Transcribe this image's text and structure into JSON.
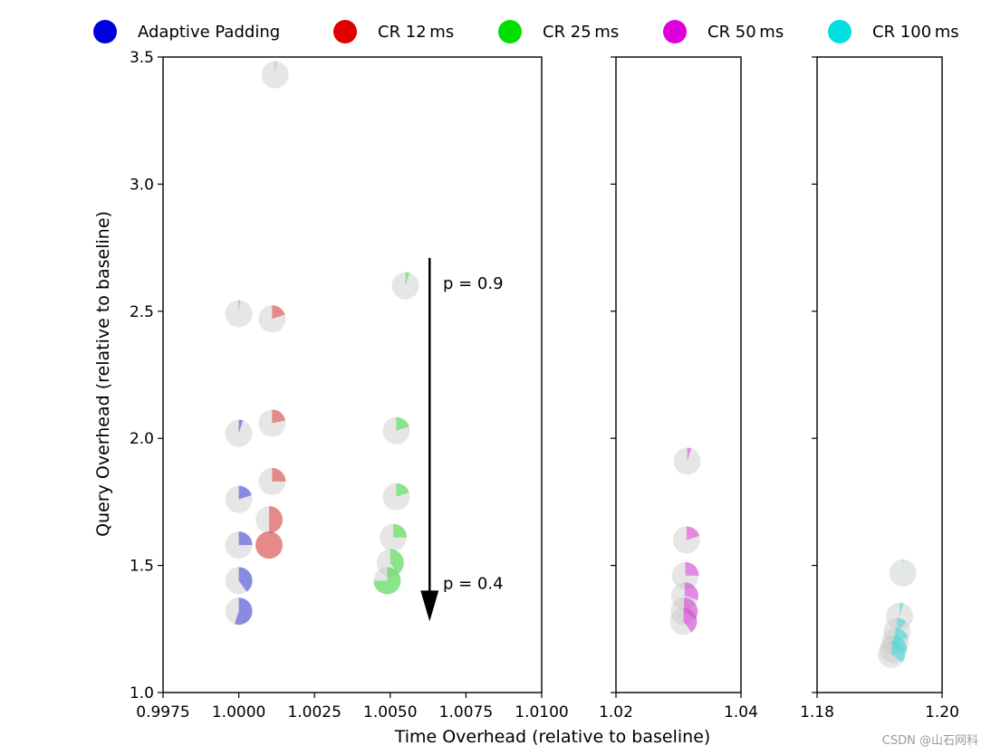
{
  "watermark": "CSDN @山石网科",
  "chart_data": {
    "type": "scatter",
    "xlabel": "Time Overhead (relative to baseline)",
    "ylabel": "Query Overhead (relative to baseline)",
    "ylim": [
      1.0,
      3.5
    ],
    "yticks": [
      "1.0",
      "1.5",
      "2.0",
      "2.5",
      "3.0",
      "3.5"
    ],
    "legend_position": "top",
    "legend": [
      {
        "label": "Adaptive Padding",
        "color": "#0000dd"
      },
      {
        "label": "CR 12 ms",
        "color": "#e00000"
      },
      {
        "label": "CR 25 ms",
        "color": "#00e000"
      },
      {
        "label": "CR 50 ms",
        "color": "#dd00dd"
      },
      {
        "label": "CR 100 ms",
        "color": "#00e0e0"
      }
    ],
    "annotations": [
      {
        "text": "p = 0.9",
        "x": 1.0065,
        "y": 2.61
      },
      {
        "text": "p = 0.4",
        "x": 1.0065,
        "y": 1.43
      }
    ],
    "arrow": {
      "panel": 0,
      "x": 1.0063,
      "y_start": 2.71,
      "y_end": 1.28
    },
    "panels": [
      {
        "xlim": [
          0.9975,
          1.01
        ],
        "xticks": [
          "0.9975",
          "1.0000",
          "1.0025",
          "1.0050",
          "1.0075",
          "1.0100"
        ],
        "series": [
          {
            "name": "Adaptive Padding",
            "color": "#0000dd",
            "points": [
              {
                "x": 1.0,
                "y": 2.49,
                "frac": 0.01
              },
              {
                "x": 1.0,
                "y": 2.02,
                "frac": 0.05
              },
              {
                "x": 1.0,
                "y": 1.76,
                "frac": 0.2
              },
              {
                "x": 1.0,
                "y": 1.58,
                "frac": 0.25
              },
              {
                "x": 1.0,
                "y": 1.44,
                "frac": 0.4
              },
              {
                "x": 1.0,
                "y": 1.32,
                "frac": 0.55
              }
            ]
          },
          {
            "name": "CR 12 ms",
            "color": "#e00000",
            "points": [
              {
                "x": 1.0012,
                "y": 3.43,
                "frac": 0.01
              },
              {
                "x": 1.0011,
                "y": 2.47,
                "frac": 0.2
              },
              {
                "x": 1.0011,
                "y": 2.06,
                "frac": 0.22
              },
              {
                "x": 1.0011,
                "y": 1.83,
                "frac": 0.25
              },
              {
                "x": 1.001,
                "y": 1.68,
                "frac": 0.5
              },
              {
                "x": 1.001,
                "y": 1.58,
                "frac": 1.0
              }
            ]
          },
          {
            "name": "CR 25 ms",
            "color": "#00e000",
            "points": [
              {
                "x": 1.0055,
                "y": 2.6,
                "frac": 0.05
              },
              {
                "x": 1.0052,
                "y": 2.03,
                "frac": 0.2
              },
              {
                "x": 1.0052,
                "y": 1.77,
                "frac": 0.2
              },
              {
                "x": 1.0051,
                "y": 1.61,
                "frac": 0.25
              },
              {
                "x": 1.005,
                "y": 1.51,
                "frac": 0.4
              },
              {
                "x": 1.0049,
                "y": 1.44,
                "frac": 0.75
              }
            ]
          }
        ]
      },
      {
        "xlim": [
          1.02,
          1.04
        ],
        "xticks": [
          "1.02",
          "1.04"
        ],
        "series": [
          {
            "name": "CR 50 ms",
            "color": "#dd00dd",
            "points": [
              {
                "x": 1.0314,
                "y": 1.91,
                "frac": 0.05
              },
              {
                "x": 1.0313,
                "y": 1.6,
                "frac": 0.2
              },
              {
                "x": 1.0311,
                "y": 1.46,
                "frac": 0.25
              },
              {
                "x": 1.031,
                "y": 1.38,
                "frac": 0.3
              },
              {
                "x": 1.0309,
                "y": 1.32,
                "frac": 0.35
              },
              {
                "x": 1.0308,
                "y": 1.28,
                "frac": 0.4
              }
            ]
          }
        ]
      },
      {
        "xlim": [
          1.18,
          1.2
        ],
        "xticks": [
          "1.18",
          "1.20"
        ],
        "series": [
          {
            "name": "CR 100 ms",
            "color": "#00e0e0",
            "points": [
              {
                "x": 1.1937,
                "y": 1.47,
                "frac": 0.01
              },
              {
                "x": 1.1932,
                "y": 1.3,
                "frac": 0.05
              },
              {
                "x": 1.1928,
                "y": 1.24,
                "frac": 0.12
              },
              {
                "x": 1.1925,
                "y": 1.2,
                "frac": 0.2
              },
              {
                "x": 1.1922,
                "y": 1.17,
                "frac": 0.28
              },
              {
                "x": 1.1919,
                "y": 1.15,
                "frac": 0.35
              }
            ]
          }
        ]
      }
    ]
  }
}
